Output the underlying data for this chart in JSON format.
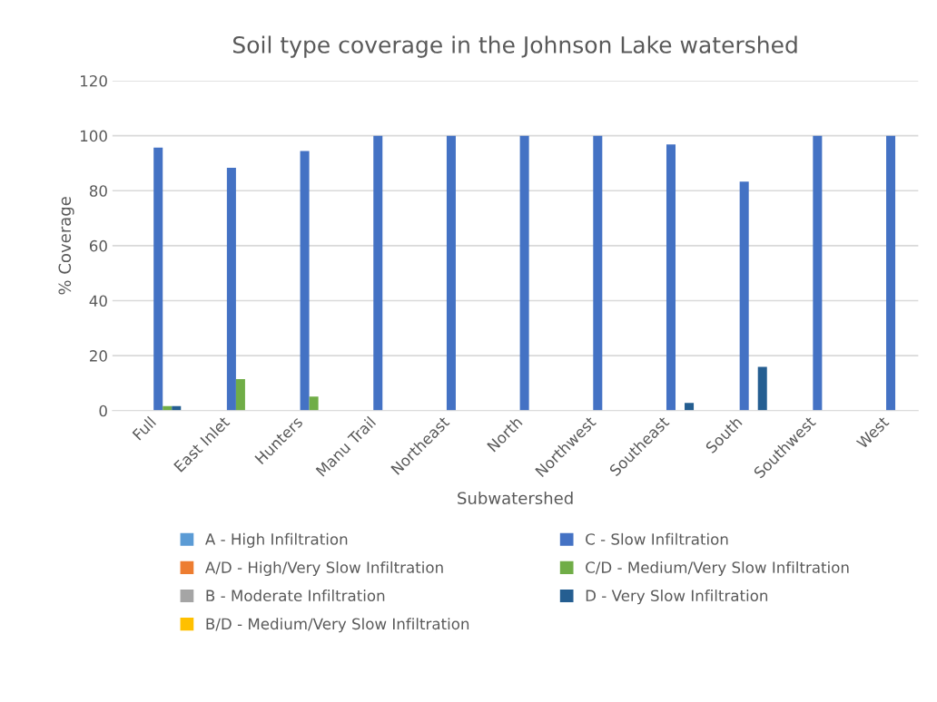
{
  "chart_data": {
    "type": "bar",
    "title": "Soil type coverage in the Johnson Lake watershed",
    "xlabel": "Subwatershed",
    "ylabel": "% Coverage",
    "categories": [
      "Full",
      "East Inlet",
      "Hunters",
      "Manu Trail",
      "Northeast",
      "North",
      "Northwest",
      "Southeast",
      "South",
      "Southwest",
      "West"
    ],
    "series": [
      {
        "name": "A - High Infiltration",
        "color": "#5b9bd5",
        "values": [
          0,
          0,
          0,
          0,
          0,
          0,
          0,
          0,
          0,
          0,
          0
        ]
      },
      {
        "name": "A/D - High/Very Slow Infiltration",
        "color": "#ed7d31",
        "values": [
          0,
          0,
          0,
          0,
          0,
          0,
          0,
          0,
          0,
          0,
          0
        ]
      },
      {
        "name": "B - Moderate Infiltration",
        "color": "#a5a5a5",
        "values": [
          0,
          0,
          0,
          0,
          0,
          0,
          0,
          0,
          0,
          0,
          0
        ]
      },
      {
        "name": "B/D - Medium/Very Slow Infiltration",
        "color": "#ffc000",
        "values": [
          0,
          0,
          0,
          0,
          0,
          0,
          0,
          0,
          0,
          0,
          0
        ]
      },
      {
        "name": "C - Slow Infiltration",
        "color": "#4472c4",
        "values": [
          95.7,
          88.3,
          94.4,
          100,
          100,
          100,
          100,
          96.8,
          83.3,
          100,
          100
        ]
      },
      {
        "name": "C/D - Medium/Very Slow Infiltration",
        "color": "#70ad47",
        "values": [
          1.7,
          11.5,
          5.1,
          0,
          0,
          0,
          0,
          0,
          0,
          0,
          0
        ]
      },
      {
        "name": "D - Very Slow Infiltration",
        "color": "#255e91",
        "values": [
          1.7,
          0,
          0,
          0,
          0,
          0,
          0,
          2.8,
          15.9,
          0,
          0
        ]
      }
    ],
    "ylim": [
      0,
      120
    ],
    "yticks": [
      0,
      20,
      40,
      60,
      80,
      100,
      120
    ],
    "grid": "y",
    "legend": "bottom"
  }
}
